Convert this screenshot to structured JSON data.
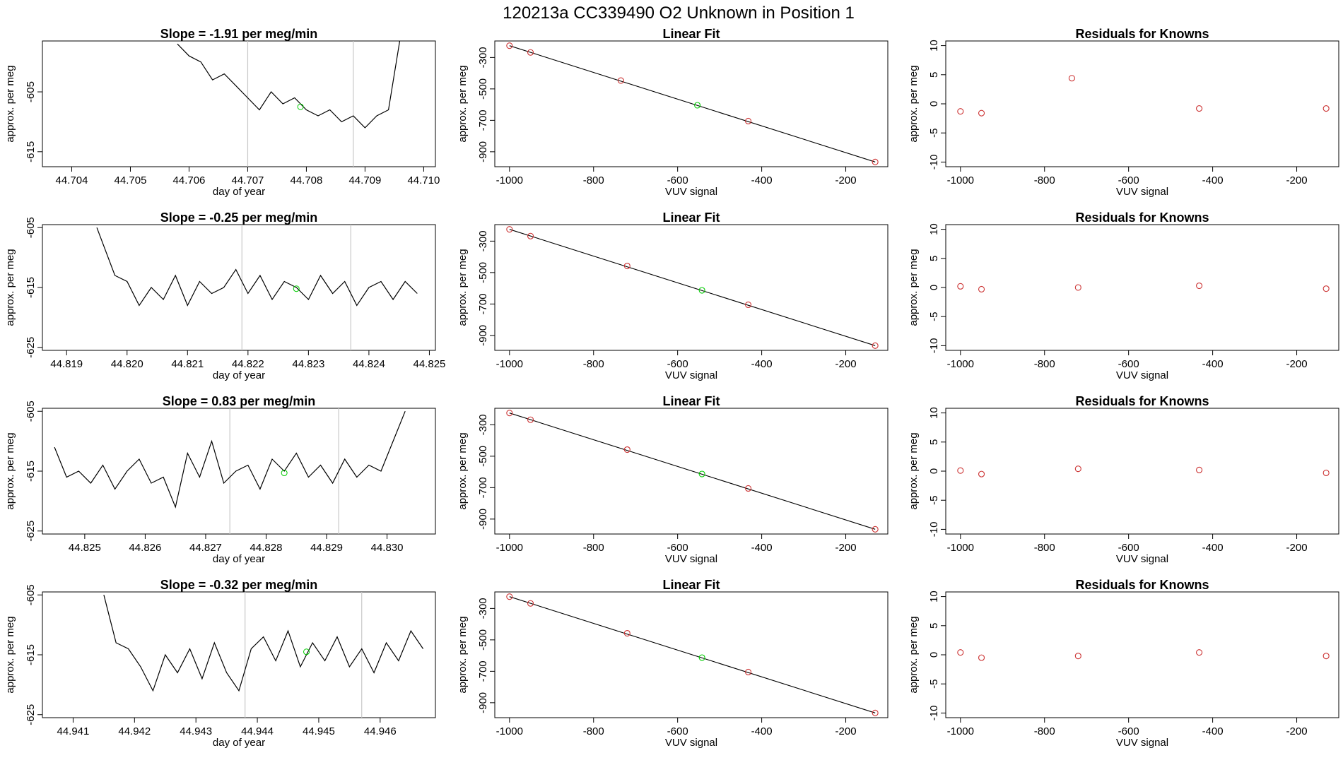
{
  "figure": {
    "title": "120213a      CC339490    O2 Unknown in Position  1"
  },
  "chart_data": [
    {
      "type": "line",
      "title": "Slope =  -1.91  per meg/min",
      "xlabel": "day of year",
      "ylabel": "approx. per meg",
      "xlim": [
        44.7035,
        44.7102
      ],
      "ylim": [
        -617.5,
        -596.5
      ],
      "xticks": [
        "44.704",
        "44.705",
        "44.706",
        "44.707",
        "44.708",
        "44.709",
        "44.710"
      ],
      "yticks": [
        "-605",
        "-615"
      ],
      "vlines": [
        44.707,
        44.7088
      ],
      "highlight": {
        "x": 44.7079,
        "y": -607.5,
        "color": "#00cc00"
      },
      "series": [
        {
          "color": "#000000",
          "x": [
            44.7058,
            44.706,
            44.7062,
            44.7064,
            44.7066,
            44.7068,
            44.707,
            44.7072,
            44.7074,
            44.7076,
            44.7078,
            44.708,
            44.7082,
            44.7084,
            44.7086,
            44.7088,
            44.709,
            44.7092,
            44.7094,
            44.7096
          ],
          "y": [
            -597,
            -599,
            -600,
            -603,
            -602,
            -604,
            -606,
            -608,
            -605,
            -607,
            -606,
            -608,
            -609,
            -608,
            -610,
            -609,
            -611,
            -609,
            -608,
            -596
          ]
        }
      ]
    },
    {
      "type": "line",
      "title": "Linear Fit",
      "xlabel": "VUV signal",
      "ylabel": "approx. per meg",
      "xlim": [
        -1035,
        -100
      ],
      "ylim": [
        -995,
        -195
      ],
      "xticks": [
        "-1000",
        "-800",
        "-600",
        "-400",
        "-200"
      ],
      "yticks": [
        "-300",
        "-500",
        "-700",
        "-900"
      ],
      "fit_line": [
        [
          -1000,
          -225
        ],
        [
          -130,
          -965
        ]
      ],
      "points": {
        "color": "#cc3333",
        "x": [
          -1000,
          -950,
          -735,
          -432,
          -130
        ],
        "y": [
          -225,
          -268,
          -447,
          -705,
          -965
        ]
      },
      "unknown": {
        "color": "#00cc00",
        "x": [
          -553
        ],
        "y": [
          -604
        ]
      }
    },
    {
      "type": "scatter",
      "title": "Residuals for Knowns",
      "xlabel": "VUV signal",
      "ylabel": "approx. per meg",
      "xlim": [
        -1035,
        -100
      ],
      "ylim": [
        -10.8,
        10.8
      ],
      "xticks": [
        "-1000",
        "-800",
        "-600",
        "-400",
        "-200"
      ],
      "yticks": [
        "-10",
        "-5",
        "0",
        "5",
        "10"
      ],
      "series": [
        {
          "color": "#cc3333",
          "x": [
            -1000,
            -950,
            -735,
            -432,
            -130
          ],
          "y": [
            -1.3,
            -1.6,
            4.4,
            -0.8,
            -0.8
          ]
        }
      ]
    },
    {
      "type": "line",
      "title": "Slope =  -0.25  per meg/min",
      "xlabel": "day of year",
      "ylabel": "approx. per meg",
      "xlim": [
        44.8186,
        44.8251
      ],
      "ylim": [
        -625.5,
        -604.5
      ],
      "xticks": [
        "44.819",
        "44.820",
        "44.821",
        "44.822",
        "44.823",
        "44.824",
        "44.825"
      ],
      "yticks": [
        "-605",
        "-615",
        "-625"
      ],
      "vlines": [
        44.8219,
        44.8237
      ],
      "highlight": {
        "x": 44.8228,
        "y": -615.2,
        "color": "#00cc00"
      },
      "series": [
        {
          "color": "#000000",
          "x": [
            44.8195,
            44.8198,
            44.82,
            44.8202,
            44.8204,
            44.8206,
            44.8208,
            44.821,
            44.8212,
            44.8214,
            44.8216,
            44.8218,
            44.822,
            44.8222,
            44.8224,
            44.8226,
            44.8228,
            44.823,
            44.8232,
            44.8234,
            44.8236,
            44.8238,
            44.824,
            44.8242,
            44.8244,
            44.8246,
            44.8248
          ],
          "y": [
            -605,
            -613,
            -614,
            -618,
            -615,
            -617,
            -613,
            -618,
            -614,
            -616,
            -615,
            -612,
            -616,
            -613,
            -617,
            -614,
            -615,
            -617,
            -613,
            -616,
            -614,
            -618,
            -615,
            -614,
            -617,
            -614,
            -616
          ]
        }
      ]
    },
    {
      "type": "line",
      "title": "Linear Fit",
      "xlabel": "VUV signal",
      "ylabel": "approx. per meg",
      "xlim": [
        -1035,
        -100
      ],
      "ylim": [
        -995,
        -195
      ],
      "xticks": [
        "-1000",
        "-800",
        "-600",
        "-400",
        "-200"
      ],
      "yticks": [
        "-300",
        "-500",
        "-700",
        "-900"
      ],
      "fit_line": [
        [
          -1000,
          -225
        ],
        [
          -130,
          -965
        ]
      ],
      "points": {
        "color": "#cc3333",
        "x": [
          -1000,
          -950,
          -720,
          -432,
          -130
        ],
        "y": [
          -225,
          -268,
          -458,
          -705,
          -965
        ]
      },
      "unknown": {
        "color": "#00cc00",
        "x": [
          -542
        ],
        "y": [
          -613
        ]
      }
    },
    {
      "type": "scatter",
      "title": "Residuals for Knowns",
      "xlabel": "VUV signal",
      "ylabel": "approx. per meg",
      "xlim": [
        -1035,
        -100
      ],
      "ylim": [
        -10.8,
        10.8
      ],
      "xticks": [
        "-1000",
        "-800",
        "-600",
        "-400",
        "-200"
      ],
      "yticks": [
        "-10",
        "-5",
        "0",
        "5",
        "10"
      ],
      "series": [
        {
          "color": "#cc3333",
          "x": [
            -1000,
            -950,
            -720,
            -432,
            -130
          ],
          "y": [
            0.2,
            -0.3,
            0.0,
            0.3,
            -0.2
          ]
        }
      ]
    },
    {
      "type": "line",
      "title": "Slope =  0.83  per meg/min",
      "xlabel": "day of year",
      "ylabel": "approx. per meg",
      "xlim": [
        44.8243,
        44.8308
      ],
      "ylim": [
        -625.5,
        -604.5
      ],
      "xticks": [
        "44.825",
        "44.826",
        "44.827",
        "44.828",
        "44.829",
        "44.830"
      ],
      "yticks": [
        "-605",
        "-615",
        "-625"
      ],
      "vlines": [
        44.8274,
        44.8292
      ],
      "highlight": {
        "x": 44.8283,
        "y": -615.3,
        "color": "#00cc00"
      },
      "series": [
        {
          "color": "#000000",
          "x": [
            44.8245,
            44.8247,
            44.8249,
            44.8251,
            44.8253,
            44.8255,
            44.8257,
            44.8259,
            44.8261,
            44.8263,
            44.8265,
            44.8267,
            44.8269,
            44.8271,
            44.8273,
            44.8275,
            44.8277,
            44.8279,
            44.8281,
            44.8283,
            44.8285,
            44.8287,
            44.8289,
            44.8291,
            44.8293,
            44.8295,
            44.8297,
            44.8299,
            44.8301,
            44.8303
          ],
          "y": [
            -611,
            -616,
            -615,
            -617,
            -614,
            -618,
            -615,
            -613,
            -617,
            -616,
            -621,
            -612,
            -616,
            -610,
            -617,
            -615,
            -614,
            -618,
            -613,
            -615,
            -612,
            -616,
            -614,
            -617,
            -613,
            -616,
            -614,
            -615,
            -610,
            -605
          ]
        }
      ]
    },
    {
      "type": "line",
      "title": "Linear Fit",
      "xlabel": "VUV signal",
      "ylabel": "approx. per meg",
      "xlim": [
        -1035,
        -100
      ],
      "ylim": [
        -995,
        -195
      ],
      "xticks": [
        "-1000",
        "-800",
        "-600",
        "-400",
        "-200"
      ],
      "yticks": [
        "-300",
        "-500",
        "-700",
        "-900"
      ],
      "fit_line": [
        [
          -1000,
          -225
        ],
        [
          -130,
          -965
        ]
      ],
      "points": {
        "color": "#cc3333",
        "x": [
          -1000,
          -950,
          -720,
          -432,
          -130
        ],
        "y": [
          -225,
          -268,
          -458,
          -705,
          -965
        ]
      },
      "unknown": {
        "color": "#00cc00",
        "x": [
          -542
        ],
        "y": [
          -613
        ]
      }
    },
    {
      "type": "scatter",
      "title": "Residuals for Knowns",
      "xlabel": "VUV signal",
      "ylabel": "approx. per meg",
      "xlim": [
        -1035,
        -100
      ],
      "ylim": [
        -10.8,
        10.8
      ],
      "xticks": [
        "-1000",
        "-800",
        "-600",
        "-400",
        "-200"
      ],
      "yticks": [
        "-10",
        "-5",
        "0",
        "5",
        "10"
      ],
      "series": [
        {
          "color": "#cc3333",
          "x": [
            -1000,
            -950,
            -720,
            -432,
            -130
          ],
          "y": [
            0.1,
            -0.5,
            0.4,
            0.2,
            -0.3
          ]
        }
      ]
    },
    {
      "type": "line",
      "title": "Slope =  -0.32  per meg/min",
      "xlabel": "day of year",
      "ylabel": "approx. per meg",
      "xlim": [
        44.9405,
        44.9469
      ],
      "ylim": [
        -625.5,
        -604.5
      ],
      "xticks": [
        "44.941",
        "44.942",
        "44.943",
        "44.944",
        "44.945",
        "44.946"
      ],
      "yticks": [
        "-605",
        "-615",
        "-625"
      ],
      "vlines": [
        44.9438,
        44.9457
      ],
      "highlight": {
        "x": 44.9448,
        "y": -614.5,
        "color": "#00cc00"
      },
      "series": [
        {
          "color": "#000000",
          "x": [
            44.9415,
            44.9417,
            44.9419,
            44.9421,
            44.9423,
            44.9425,
            44.9427,
            44.9429,
            44.9431,
            44.9433,
            44.9435,
            44.9437,
            44.9439,
            44.9441,
            44.9443,
            44.9445,
            44.9447,
            44.9449,
            44.9451,
            44.9453,
            44.9455,
            44.9457,
            44.9459,
            44.9461,
            44.9463,
            44.9465,
            44.9467
          ],
          "y": [
            -605,
            -613,
            -614,
            -617,
            -621,
            -615,
            -618,
            -614,
            -619,
            -613,
            -618,
            -621,
            -614,
            -612,
            -616,
            -611,
            -617,
            -613,
            -616,
            -612,
            -617,
            -614,
            -618,
            -613,
            -616,
            -611,
            -614
          ]
        }
      ]
    },
    {
      "type": "line",
      "title": "Linear Fit",
      "xlabel": "VUV signal",
      "ylabel": "approx. per meg",
      "xlim": [
        -1035,
        -100
      ],
      "ylim": [
        -995,
        -195
      ],
      "xticks": [
        "-1000",
        "-800",
        "-600",
        "-400",
        "-200"
      ],
      "yticks": [
        "-300",
        "-500",
        "-700",
        "-900"
      ],
      "fit_line": [
        [
          -1000,
          -225
        ],
        [
          -130,
          -965
        ]
      ],
      "points": {
        "color": "#cc3333",
        "x": [
          -1000,
          -950,
          -720,
          -432,
          -130
        ],
        "y": [
          -225,
          -268,
          -458,
          -705,
          -965
        ]
      },
      "unknown": {
        "color": "#00cc00",
        "x": [
          -542
        ],
        "y": [
          -613
        ]
      }
    },
    {
      "type": "scatter",
      "title": "Residuals for Knowns",
      "xlabel": "VUV signal",
      "ylabel": "approx. per meg",
      "xlim": [
        -1035,
        -100
      ],
      "ylim": [
        -10.8,
        10.8
      ],
      "xticks": [
        "-1000",
        "-800",
        "-600",
        "-400",
        "-200"
      ],
      "yticks": [
        "-10",
        "-5",
        "0",
        "5",
        "10"
      ],
      "series": [
        {
          "color": "#cc3333",
          "x": [
            -1000,
            -950,
            -720,
            -432,
            -130
          ],
          "y": [
            0.4,
            -0.5,
            -0.2,
            0.4,
            -0.2
          ]
        }
      ]
    }
  ]
}
